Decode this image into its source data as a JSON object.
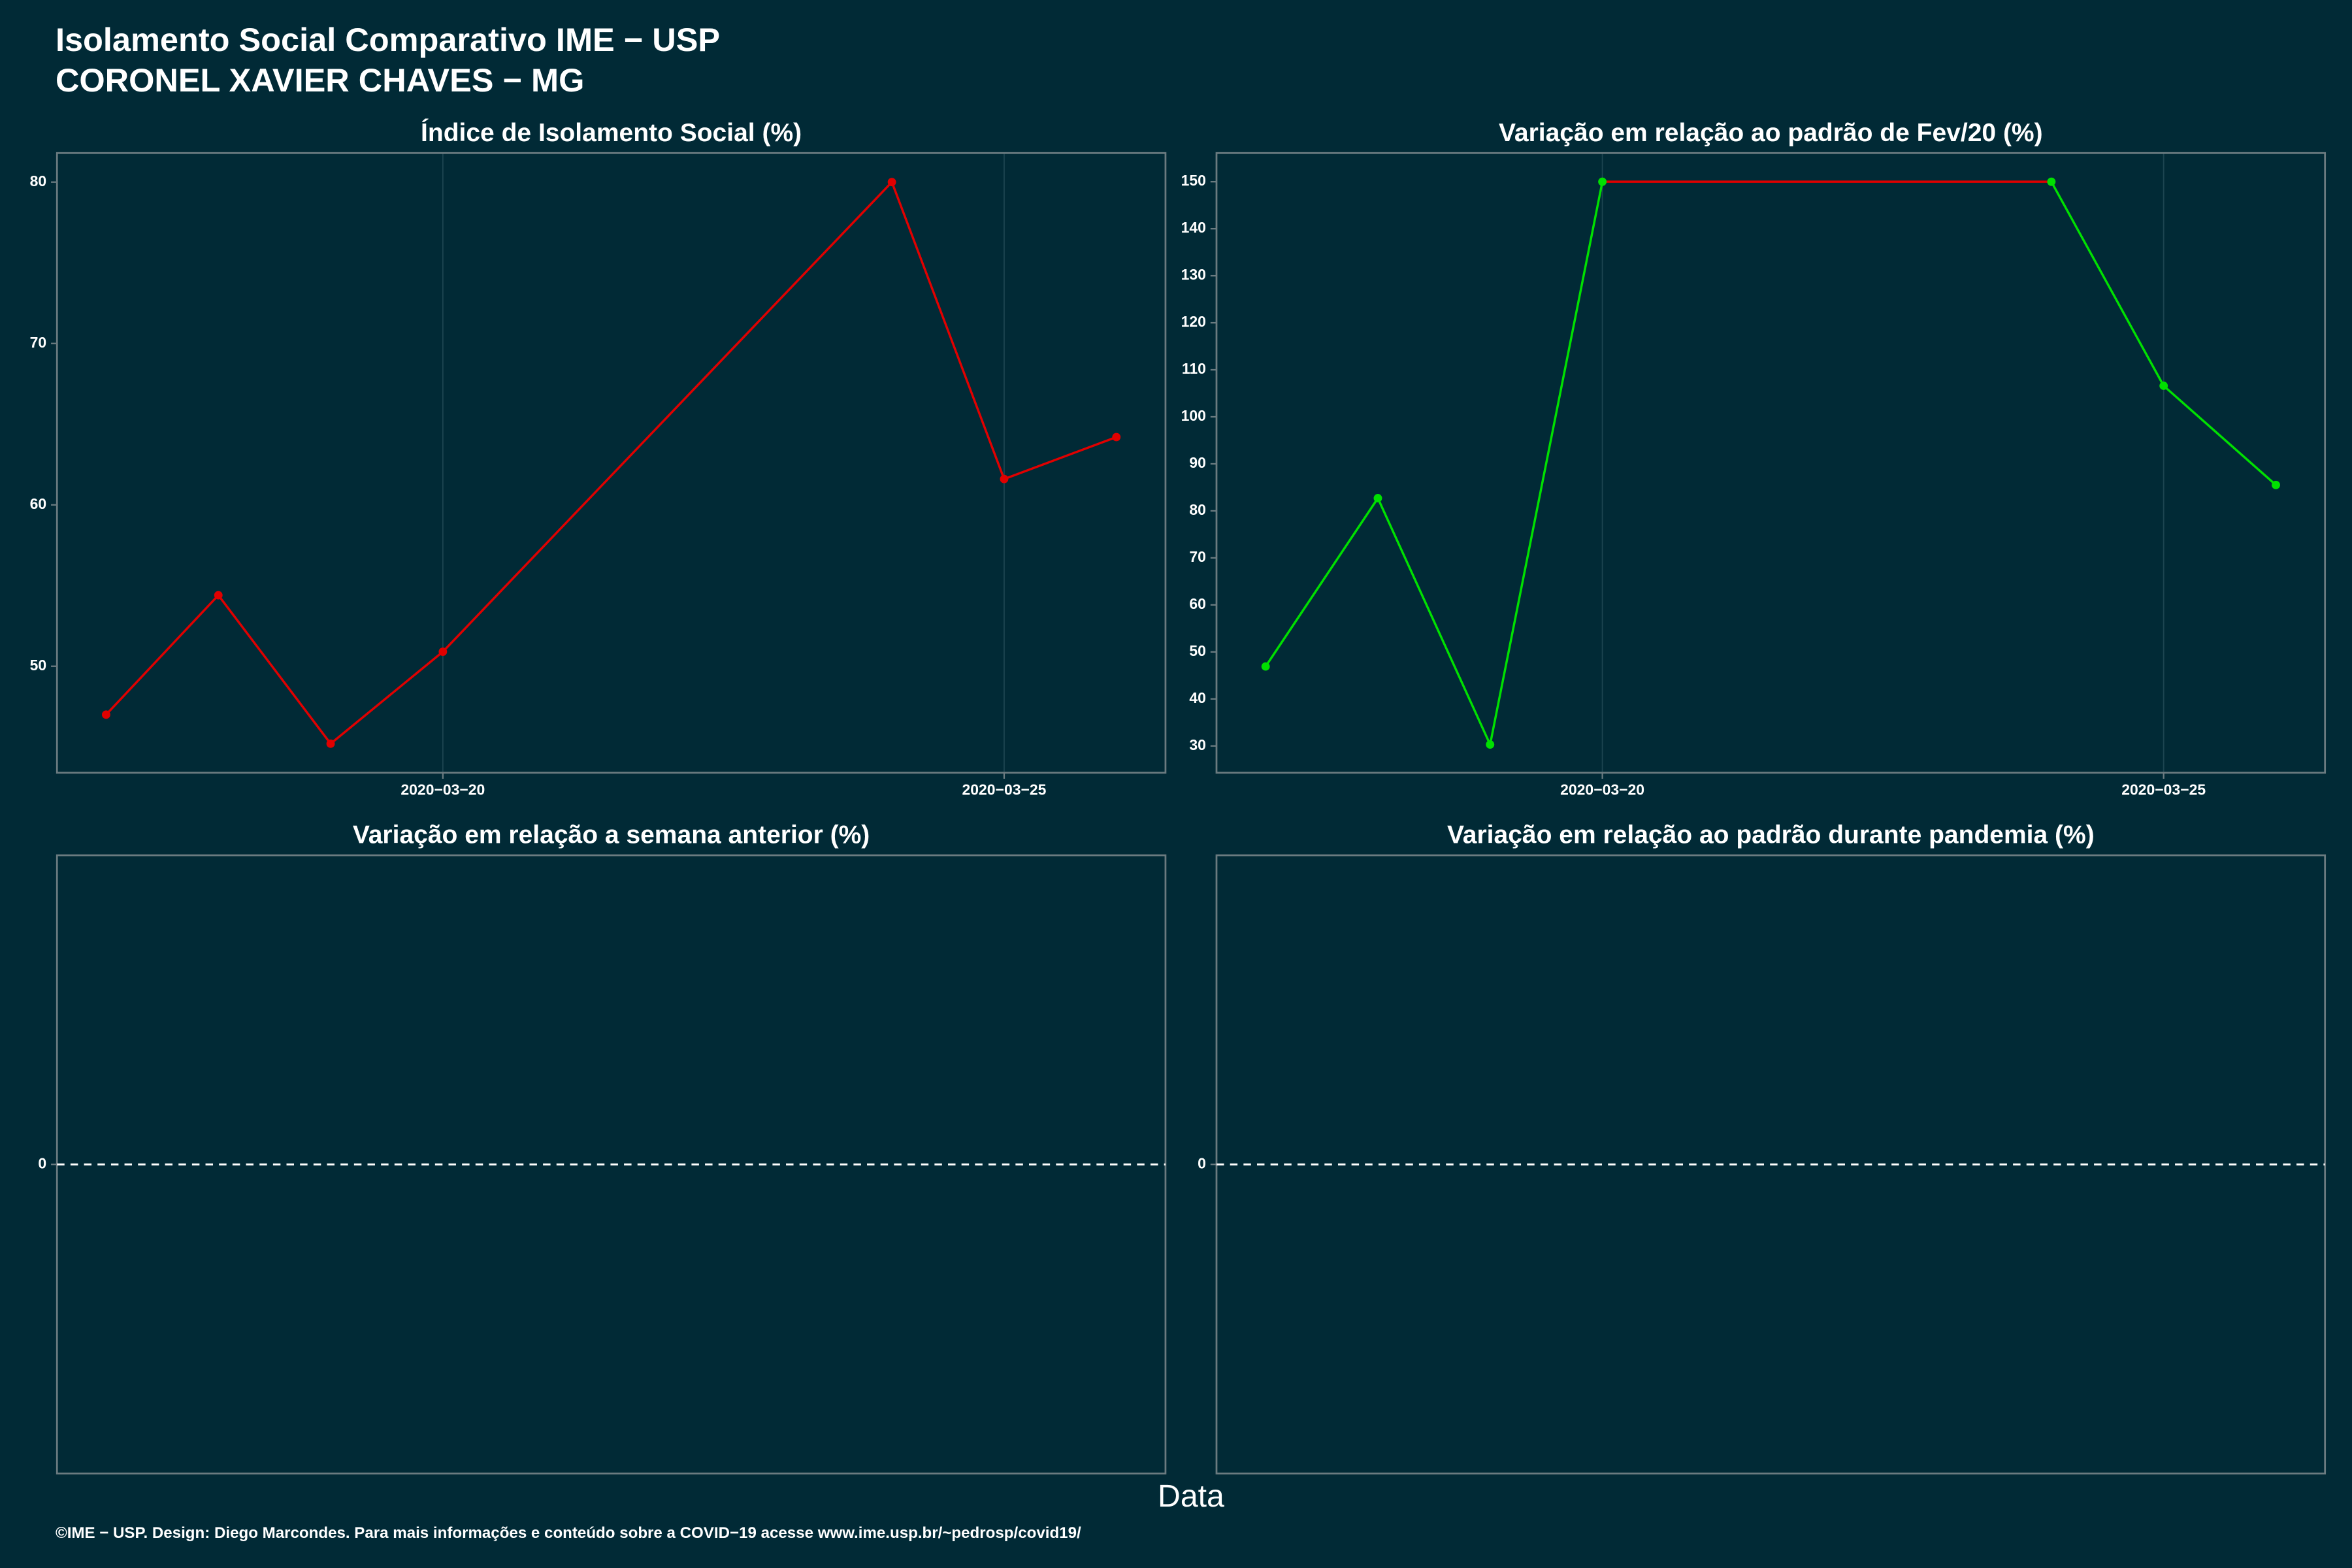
{
  "title": [
    "Isolamento Social Comparativo IME − USP",
    "CORONEL XAVIER CHAVES − MG"
  ],
  "xlabel": "Data",
  "caption": "©IME − USP. Design: Diego Marcondes. Para mais informações e conteúdo sobre a COVID−19 acesse www.ime.usp.br/~pedrosp/covid19/",
  "chart_data": [
    {
      "type": "line",
      "title": "Índice de Isolamento Social (%)",
      "x": [
        "2020-03-17",
        "2020-03-18",
        "2020-03-19",
        "2020-03-20",
        "2020-03-24",
        "2020-03-25",
        "2020-03-26"
      ],
      "series": [
        {
          "color": "#e00000",
          "values": [
            47.0,
            54.4,
            45.2,
            50.9,
            80.0,
            61.6,
            64.2
          ]
        }
      ],
      "xlim": [
        "2020-03-16T13:30:00Z",
        "2020-03-26T10:30:00Z"
      ],
      "xticks": [
        {
          "value": "2020-03-20",
          "label": "2020−03−20"
        },
        {
          "value": "2020-03-25",
          "label": "2020−03−25"
        }
      ],
      "ylim": [
        43.4,
        81.8
      ],
      "yticks": [
        50,
        60,
        70,
        80
      ]
    },
    {
      "type": "line",
      "title": "Variação em relação ao padrão de Fev/20 (%)",
      "x": [
        "2020-03-17",
        "2020-03-18",
        "2020-03-19",
        "2020-03-20",
        "2020-03-24",
        "2020-03-25",
        "2020-03-26"
      ],
      "series": [
        {
          "color": "#00e000",
          "segment_colors": [
            "#00e000",
            "#00e000",
            "#00e000",
            "#e00000",
            "#00e000",
            "#00e000"
          ],
          "values": [
            46.9,
            82.7,
            30.3,
            150,
            150,
            106.6,
            85.5
          ]
        }
      ],
      "xlim": [
        "2020-03-16T13:30:00Z",
        "2020-03-26T10:30:00Z"
      ],
      "xticks": [
        {
          "value": "2020-03-20",
          "label": "2020−03−20"
        },
        {
          "value": "2020-03-25",
          "label": "2020−03−25"
        }
      ],
      "ylim": [
        24.3,
        156.1
      ],
      "yticks": [
        30,
        40,
        50,
        60,
        70,
        80,
        90,
        100,
        110,
        120,
        130,
        140,
        150
      ]
    },
    {
      "type": "line",
      "title": "Variação em relação a semana anterior (%)",
      "x": [],
      "series": [],
      "ylim": [
        -1,
        1
      ],
      "yticks": [
        0
      ],
      "hline": 0
    },
    {
      "type": "line",
      "title": "Variação em relação ao padrão durante pandemia (%)",
      "x": [],
      "series": [],
      "ylim": [
        -1,
        1
      ],
      "yticks": [
        0
      ],
      "hline": 0
    }
  ]
}
